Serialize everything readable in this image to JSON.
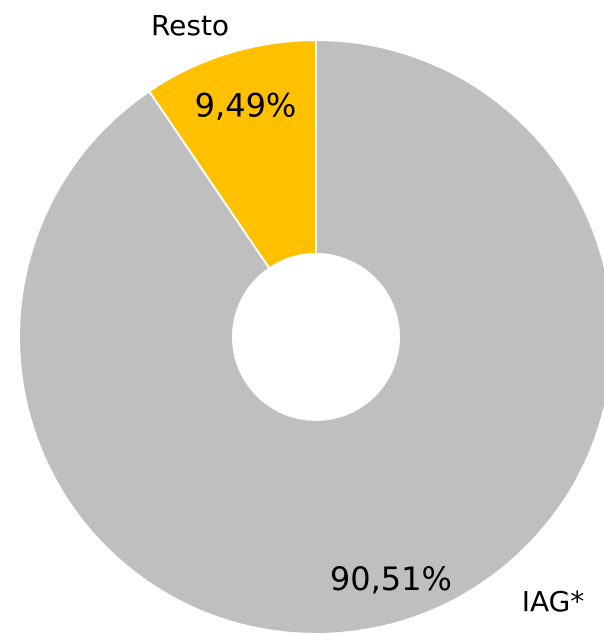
{
  "chart_data": {
    "type": "donut",
    "categories": [
      "IAG*",
      "Resto"
    ],
    "values": [
      90.51,
      9.49
    ],
    "value_labels": [
      "90,51%",
      "9,49%"
    ],
    "colors": [
      "#bfbfbf",
      "#ffc000"
    ]
  }
}
